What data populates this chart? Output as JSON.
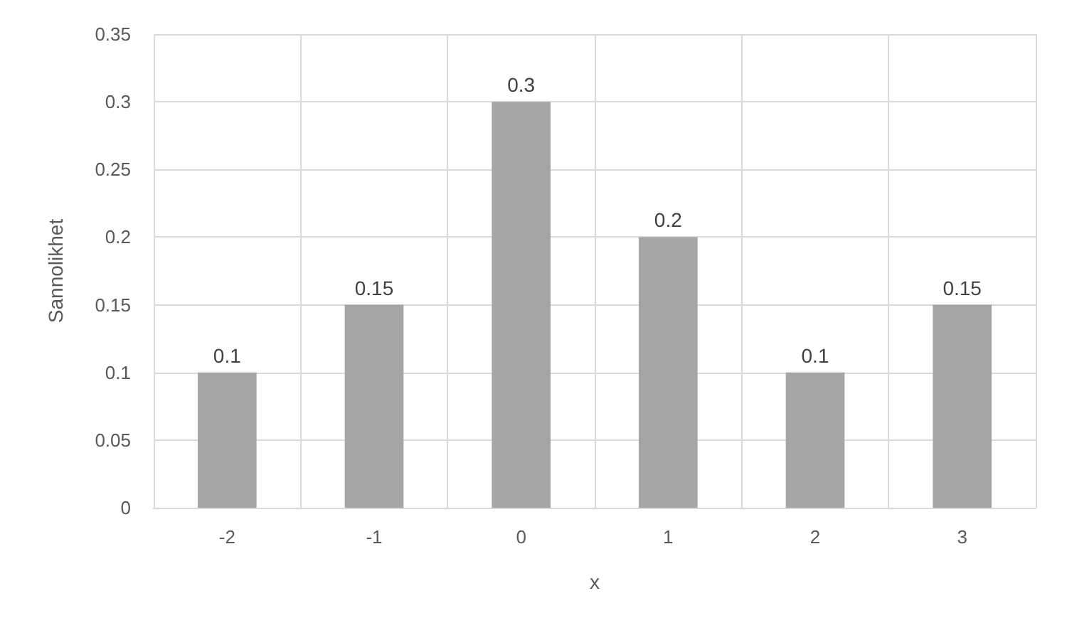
{
  "chart_data": {
    "type": "bar",
    "xlabel": "x",
    "ylabel": "Sannolikhet",
    "categories": [
      "-2",
      "-1",
      "0",
      "1",
      "2",
      "3"
    ],
    "values": [
      0.1,
      0.15,
      0.3,
      0.2,
      0.1,
      0.15
    ],
    "color": "#a5a5a5",
    "ylim": [
      0,
      0.35
    ],
    "yticks": [
      0,
      0.05,
      0.1,
      0.15,
      0.2,
      0.25,
      0.3,
      0.35
    ],
    "grid": true,
    "data_labels": true
  }
}
